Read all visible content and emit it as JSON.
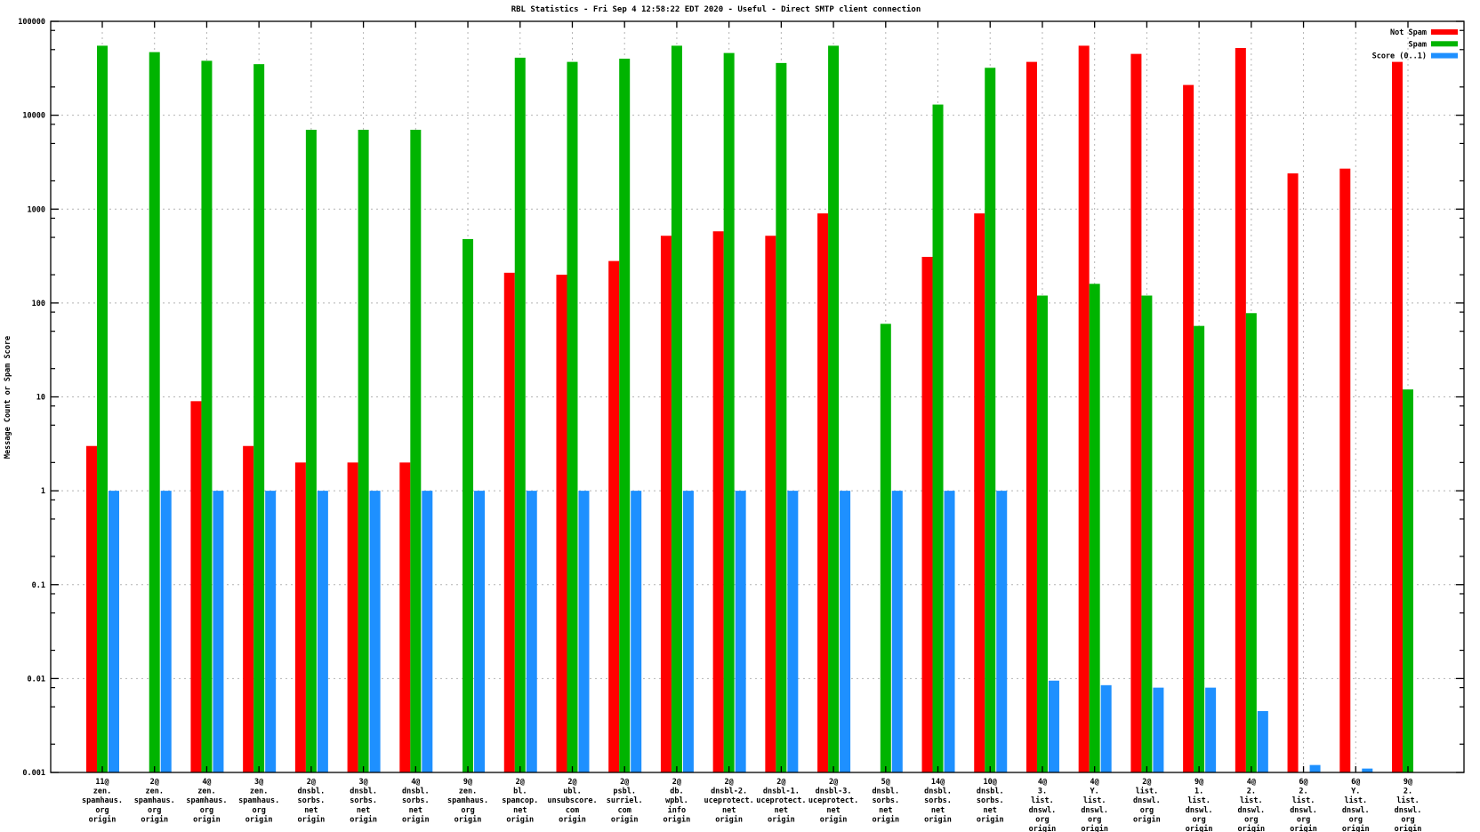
{
  "chart_data": {
    "type": "bar",
    "title": "RBL Statistics - Fri Sep  4 12:58:22 EDT 2020 - Useful - Direct SMTP client connection",
    "ylabel": "Message Count or Spam Score",
    "y_scale": "log10",
    "ylim": [
      0.001,
      100000
    ],
    "y_tick_labels": [
      "100000",
      "10000",
      "1000",
      "100",
      "10",
      "1",
      "0.1",
      "0.01",
      "0.001"
    ],
    "grid": true,
    "legend_position": "top-right-inside",
    "legend": [
      {
        "name": "Not Spam",
        "color": "#ff0000"
      },
      {
        "name": "Spam",
        "color": "#00b400"
      },
      {
        "name": "Score (0..1)",
        "color": "#1e90ff"
      }
    ],
    "categories": [
      [
        "11@",
        "zen.",
        "spamhaus.",
        "org",
        "origin"
      ],
      [
        "2@",
        "zen.",
        "spamhaus.",
        "org",
        "origin"
      ],
      [
        "4@",
        "zen.",
        "spamhaus.",
        "org",
        "origin"
      ],
      [
        "3@",
        "zen.",
        "spamhaus.",
        "org",
        "origin"
      ],
      [
        "2@",
        "dnsbl.",
        "sorbs.",
        "net",
        "origin"
      ],
      [
        "3@",
        "dnsbl.",
        "sorbs.",
        "net",
        "origin"
      ],
      [
        "4@",
        "dnsbl.",
        "sorbs.",
        "net",
        "origin"
      ],
      [
        "9@",
        "zen.",
        "spamhaus.",
        "org",
        "origin"
      ],
      [
        "2@",
        "bl.",
        "spamcop.",
        "net",
        "origin"
      ],
      [
        "2@",
        "ubl.",
        "unsubscore.",
        "com",
        "origin"
      ],
      [
        "2@",
        "psbl.",
        "surriel.",
        "com",
        "origin"
      ],
      [
        "2@",
        "db.",
        "wpbl.",
        "info",
        "origin"
      ],
      [
        "2@",
        "dnsbl-2.",
        "uceprotect.",
        "net",
        "origin"
      ],
      [
        "2@",
        "dnsbl-1.",
        "uceprotect.",
        "net",
        "origin"
      ],
      [
        "2@",
        "dnsbl-3.",
        "uceprotect.",
        "net",
        "origin"
      ],
      [
        "5@",
        "dnsbl.",
        "sorbs.",
        "net",
        "origin"
      ],
      [
        "14@",
        "dnsbl.",
        "sorbs.",
        "net",
        "origin"
      ],
      [
        "10@",
        "dnsbl.",
        "sorbs.",
        "net",
        "origin"
      ],
      [
        "4@",
        "3.",
        "list.",
        "dnswl.",
        "org",
        "origin"
      ],
      [
        "4@",
        "Y.",
        "list.",
        "dnswl.",
        "org",
        "origin"
      ],
      [
        "2@",
        "list.",
        "dnswl.",
        "org",
        "origin"
      ],
      [
        "9@",
        "1.",
        "list.",
        "dnswl.",
        "org",
        "origin"
      ],
      [
        "4@",
        "2.",
        "list.",
        "dnswl.",
        "org",
        "origin"
      ],
      [
        "6@",
        "2.",
        "list.",
        "dnswl.",
        "org",
        "origin"
      ],
      [
        "6@",
        "Y.",
        "list.",
        "dnswl.",
        "org",
        "origin"
      ],
      [
        "9@",
        "2.",
        "list.",
        "dnswl.",
        "org",
        "origin"
      ]
    ],
    "series": [
      {
        "name": "Not Spam",
        "key": "not-spam",
        "color": "#ff0000",
        "values": [
          3,
          null,
          9,
          3,
          2,
          2,
          2,
          null,
          210,
          200,
          280,
          520,
          580,
          520,
          900,
          null,
          310,
          900,
          37000,
          55000,
          45000,
          21000,
          52000,
          2400,
          2700,
          37000
        ]
      },
      {
        "name": "Spam",
        "key": "spam",
        "color": "#00b400",
        "values": [
          55000,
          47000,
          38000,
          35000,
          7000,
          7000,
          7000,
          480,
          41000,
          37000,
          40000,
          55000,
          46000,
          36000,
          55000,
          60,
          13000,
          32000,
          120,
          160,
          120,
          57,
          78,
          null,
          null,
          12
        ]
      },
      {
        "name": "Score (0..1)",
        "key": "score",
        "color": "#1e90ff",
        "values": [
          1,
          1,
          1,
          1,
          1,
          1,
          1,
          1,
          1,
          1,
          1,
          1,
          1,
          1,
          1,
          1,
          1,
          1,
          0.0095,
          0.0085,
          0.008,
          0.008,
          0.0045,
          0.0012,
          0.0011,
          null
        ]
      }
    ],
    "axis_color": "#000000",
    "grid_color": "#b4b4b4",
    "background_color": "#ffffff"
  }
}
